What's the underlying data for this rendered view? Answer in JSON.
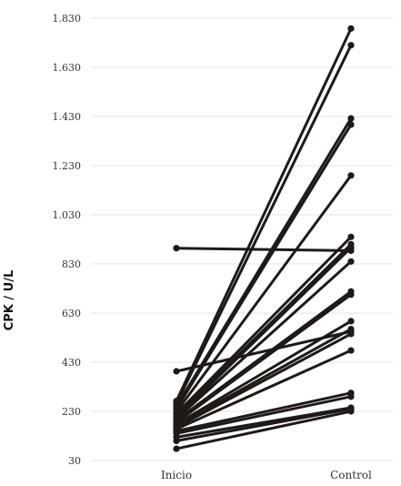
{
  "chart_data": {
    "type": "line",
    "ylabel": "CPK / U/L",
    "categories": [
      "Inicio",
      "Control"
    ],
    "ylim": [
      30,
      1830
    ],
    "yticks": [
      30,
      230,
      430,
      630,
      830,
      1030,
      1230,
      1430,
      1630,
      1830
    ],
    "ytick_labels": [
      "30",
      "230",
      "430",
      "630",
      "830",
      "1.030",
      "1.230",
      "1.430",
      "1.630",
      "1.830"
    ],
    "grid": true,
    "series": [
      {
        "values": [
          894,
          884
        ]
      },
      {
        "values": [
          393,
          555
        ]
      },
      {
        "values": [
          272,
          1788
        ]
      },
      {
        "values": [
          261,
          1720
        ]
      },
      {
        "values": [
          250,
          1422
        ]
      },
      {
        "values": [
          240,
          1397
        ]
      },
      {
        "values": [
          228,
          1190
        ]
      },
      {
        "values": [
          220,
          940
        ]
      },
      {
        "values": [
          212,
          910
        ]
      },
      {
        "values": [
          205,
          896
        ]
      },
      {
        "values": [
          200,
          840
        ]
      },
      {
        "values": [
          193,
          718
        ]
      },
      {
        "values": [
          185,
          705
        ]
      },
      {
        "values": [
          178,
          597
        ]
      },
      {
        "values": [
          172,
          565
        ]
      },
      {
        "values": [
          165,
          545
        ]
      },
      {
        "values": [
          158,
          478
        ]
      },
      {
        "values": [
          150,
          305
        ]
      },
      {
        "values": [
          140,
          290
        ]
      },
      {
        "values": [
          125,
          245
        ]
      },
      {
        "values": [
          110,
          240
        ]
      },
      {
        "values": [
          78,
          230
        ]
      }
    ]
  },
  "style": {
    "line_color": "#1e1a18",
    "grid_color": "#e3e3e3"
  }
}
